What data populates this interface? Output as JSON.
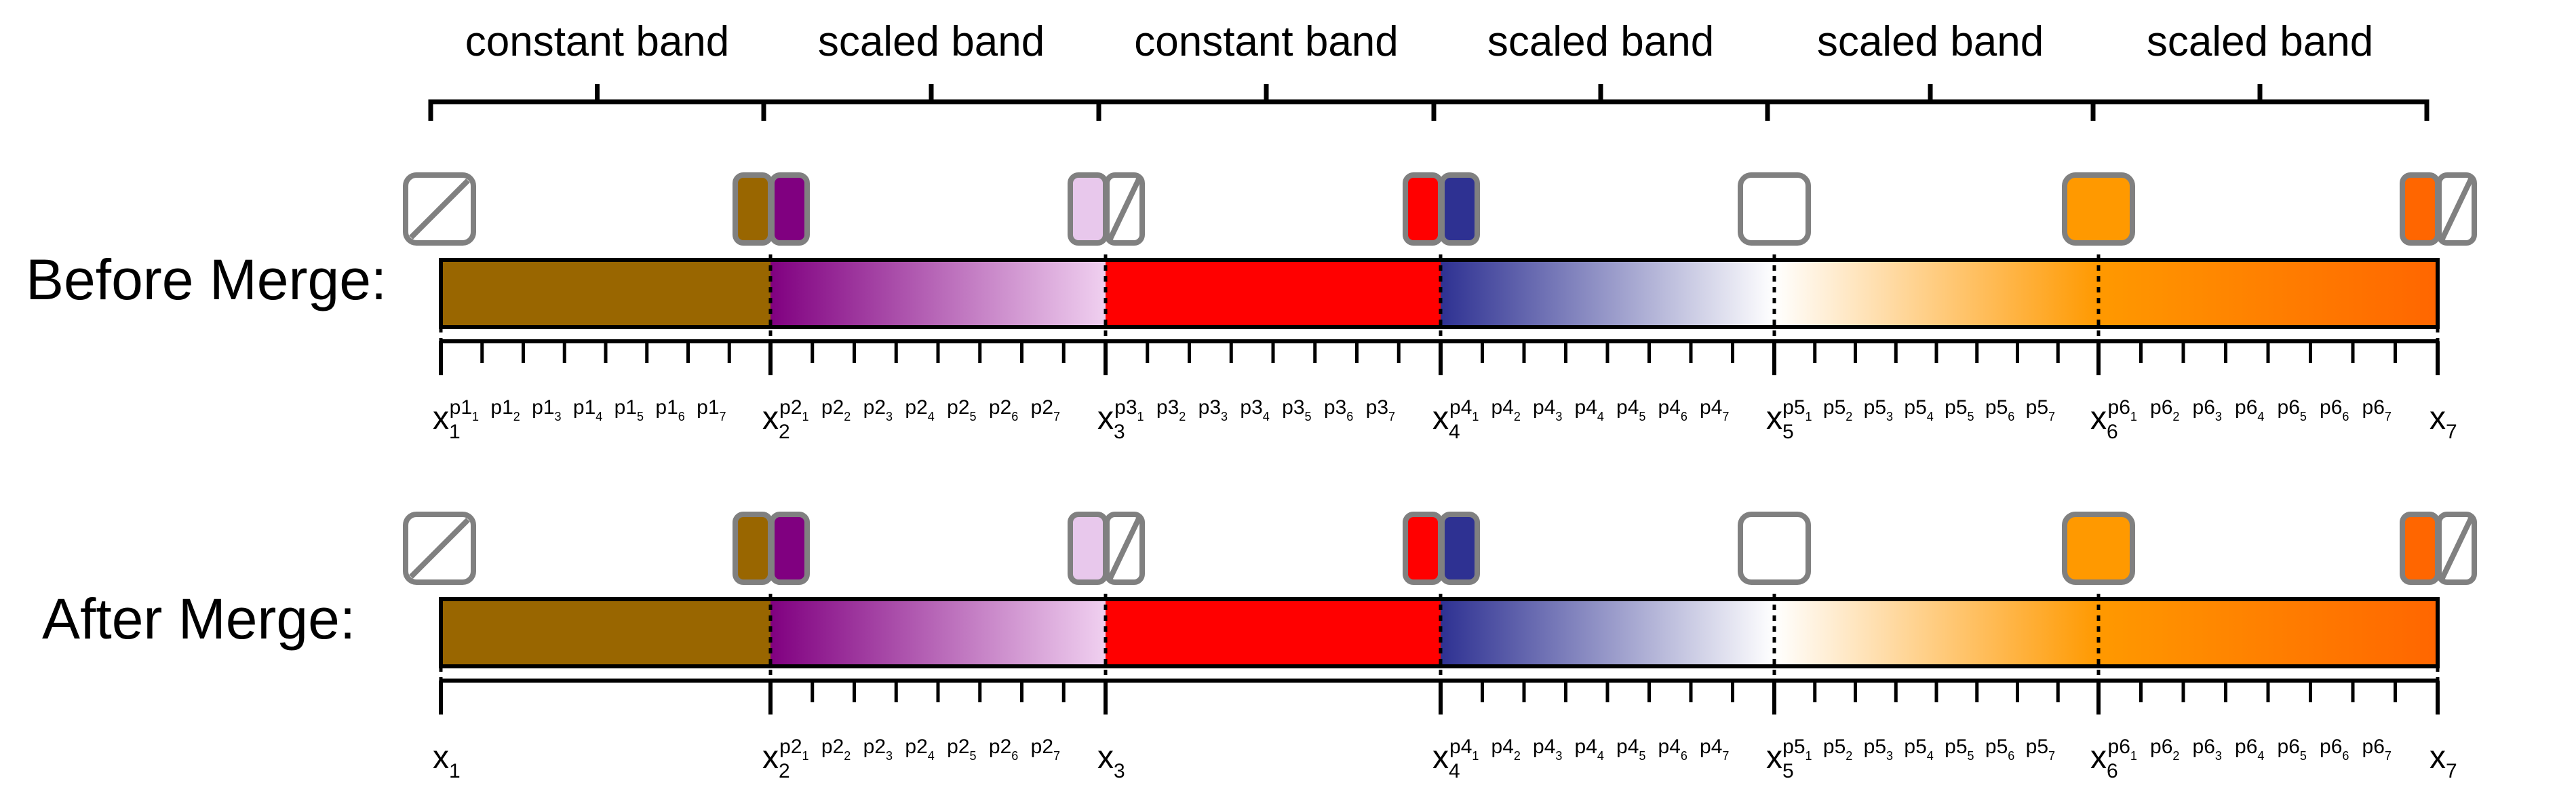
{
  "bands": [
    {
      "label": "constant band",
      "type": "constant",
      "colors": [
        "#996600"
      ],
      "swatches": [
        [
          "none"
        ],
        [
          "#996600"
        ]
      ]
    },
    {
      "label": "scaled band",
      "type": "scaled",
      "colors": [
        "#800080",
        "#F0D0F0"
      ],
      "swatches": [
        [
          "#800080"
        ],
        [
          "#E8C8EC"
        ]
      ]
    },
    {
      "label": "constant band",
      "type": "constant",
      "colors": [
        "#FF0000"
      ],
      "swatches": [
        [
          "none"
        ],
        [
          "#FF0000"
        ]
      ]
    },
    {
      "label": "scaled band",
      "type": "scaled",
      "colors": [
        "#2E3192",
        "#FFFFFF"
      ],
      "swatches": [
        [
          "#2E3192"
        ],
        [
          "#FFFFFF"
        ]
      ]
    },
    {
      "label": "scaled band",
      "type": "scaled",
      "colors": [
        "#FFFFFF",
        "#FF9900"
      ],
      "swatches": [
        [
          "#FFFFFF"
        ],
        [
          "#FF9900"
        ]
      ]
    },
    {
      "label": "scaled band",
      "type": "scaled",
      "colors": [
        "#FF9900",
        "#FF6600"
      ],
      "swatches": [
        [
          "#FF9900"
        ],
        [
          "#FF6600"
        ]
      ]
    }
  ],
  "last_swatch": [
    "#FF6600",
    "none"
  ],
  "boundaries": [
    {
      "main": "x",
      "sub": "1"
    },
    {
      "main": "x",
      "sub": "2"
    },
    {
      "main": "x",
      "sub": "3"
    },
    {
      "main": "x",
      "sub": "4"
    },
    {
      "main": "x",
      "sub": "5"
    },
    {
      "main": "x",
      "sub": "6"
    },
    {
      "main": "x",
      "sub": "7"
    }
  ],
  "rows": [
    {
      "label": "Before Merge:",
      "segments": [
        {
          "prefix": "p1",
          "subs": [
            "1",
            "2",
            "3",
            "4",
            "5",
            "6",
            "7"
          ]
        },
        {
          "prefix": "p2",
          "subs": [
            "1",
            "2",
            "3",
            "4",
            "5",
            "6",
            "7"
          ]
        },
        {
          "prefix": "p3",
          "subs": [
            "1",
            "2",
            "3",
            "4",
            "5",
            "6",
            "7"
          ]
        },
        {
          "prefix": "p4",
          "subs": [
            "1",
            "2",
            "3",
            "4",
            "5",
            "6",
            "7"
          ]
        },
        {
          "prefix": "p5",
          "subs": [
            "1",
            "2",
            "3",
            "4",
            "5",
            "6",
            "7"
          ]
        },
        {
          "prefix": "p6",
          "subs": [
            "1",
            "2",
            "3",
            "4",
            "5",
            "6",
            "7"
          ]
        }
      ]
    },
    {
      "label": "After Merge:",
      "segments": [
        {
          "prefix": "",
          "subs": []
        },
        {
          "prefix": "p2",
          "subs": [
            "1",
            "2",
            "3",
            "4",
            "5",
            "6",
            "7"
          ]
        },
        {
          "prefix": "",
          "subs": []
        },
        {
          "prefix": "p4",
          "subs": [
            "1",
            "2",
            "3",
            "4",
            "5",
            "6",
            "7"
          ]
        },
        {
          "prefix": "p5",
          "subs": [
            "1",
            "2",
            "3",
            "4",
            "5",
            "6",
            "7"
          ]
        },
        {
          "prefix": "p6",
          "subs": [
            "1",
            "2",
            "3",
            "4",
            "5",
            "6",
            "7"
          ]
        }
      ]
    }
  ]
}
